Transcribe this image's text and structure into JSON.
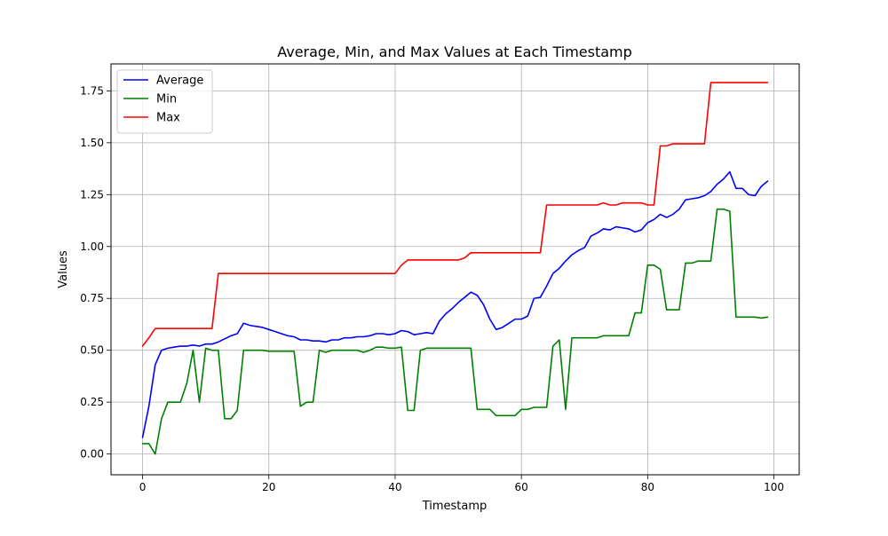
{
  "chart_data": {
    "type": "line",
    "title": "Average, Min, and Max Values at Each Timestamp",
    "xlabel": "Timestamp",
    "ylabel": "Values",
    "xlim": [
      -5,
      104
    ],
    "ylim": [
      -0.1,
      1.88
    ],
    "xticks": [
      0,
      20,
      40,
      60,
      80,
      100
    ],
    "xtick_labels": [
      "0",
      "20",
      "40",
      "60",
      "80",
      "100"
    ],
    "yticks": [
      0.0,
      0.25,
      0.5,
      0.75,
      1.0,
      1.25,
      1.5,
      1.75
    ],
    "ytick_labels": [
      "0.00",
      "0.25",
      "0.50",
      "0.75",
      "1.00",
      "1.25",
      "1.50",
      "1.75"
    ],
    "grid": true,
    "legend_position": "upper-left",
    "series": [
      {
        "name": "Average",
        "color": "#0000ff",
        "points": [
          [
            0,
            0.08
          ],
          [
            1,
            0.23
          ],
          [
            2,
            0.43
          ],
          [
            3,
            0.5
          ],
          [
            4,
            0.51
          ],
          [
            5,
            0.515
          ],
          [
            6,
            0.52
          ],
          [
            7,
            0.52
          ],
          [
            8,
            0.525
          ],
          [
            9,
            0.52
          ],
          [
            10,
            0.53
          ],
          [
            11,
            0.53
          ],
          [
            12,
            0.54
          ],
          [
            13,
            0.555
          ],
          [
            14,
            0.57
          ],
          [
            15,
            0.58
          ],
          [
            16,
            0.63
          ],
          [
            17,
            0.62
          ],
          [
            18,
            0.615
          ],
          [
            19,
            0.61
          ],
          [
            20,
            0.6
          ],
          [
            21,
            0.59
          ],
          [
            22,
            0.58
          ],
          [
            23,
            0.57
          ],
          [
            24,
            0.565
          ],
          [
            25,
            0.55
          ],
          [
            26,
            0.55
          ],
          [
            27,
            0.545
          ],
          [
            28,
            0.545
          ],
          [
            29,
            0.54
          ],
          [
            30,
            0.55
          ],
          [
            31,
            0.55
          ],
          [
            32,
            0.56
          ],
          [
            33,
            0.56
          ],
          [
            34,
            0.565
          ],
          [
            35,
            0.565
          ],
          [
            36,
            0.57
          ],
          [
            37,
            0.58
          ],
          [
            38,
            0.58
          ],
          [
            39,
            0.575
          ],
          [
            40,
            0.58
          ],
          [
            41,
            0.595
          ],
          [
            42,
            0.59
          ],
          [
            43,
            0.575
          ],
          [
            44,
            0.58
          ],
          [
            45,
            0.585
          ],
          [
            46,
            0.58
          ],
          [
            47,
            0.64
          ],
          [
            48,
            0.675
          ],
          [
            49,
            0.7
          ],
          [
            50,
            0.73
          ],
          [
            51,
            0.755
          ],
          [
            52,
            0.78
          ],
          [
            53,
            0.765
          ],
          [
            54,
            0.72
          ],
          [
            55,
            0.65
          ],
          [
            56,
            0.6
          ],
          [
            57,
            0.61
          ],
          [
            58,
            0.63
          ],
          [
            59,
            0.65
          ],
          [
            60,
            0.65
          ],
          [
            61,
            0.665
          ],
          [
            62,
            0.75
          ],
          [
            63,
            0.755
          ],
          [
            64,
            0.81
          ],
          [
            65,
            0.87
          ],
          [
            66,
            0.895
          ],
          [
            67,
            0.93
          ],
          [
            68,
            0.96
          ],
          [
            69,
            0.98
          ],
          [
            70,
            0.995
          ],
          [
            71,
            1.05
          ],
          [
            72,
            1.065
          ],
          [
            73,
            1.085
          ],
          [
            74,
            1.08
          ],
          [
            75,
            1.095
          ],
          [
            76,
            1.09
          ],
          [
            77,
            1.085
          ],
          [
            78,
            1.07
          ],
          [
            79,
            1.08
          ],
          [
            80,
            1.115
          ],
          [
            81,
            1.13
          ],
          [
            82,
            1.155
          ],
          [
            83,
            1.14
          ],
          [
            84,
            1.155
          ],
          [
            85,
            1.18
          ],
          [
            86,
            1.225
          ],
          [
            87,
            1.23
          ],
          [
            88,
            1.235
          ],
          [
            89,
            1.245
          ],
          [
            90,
            1.265
          ],
          [
            91,
            1.3
          ],
          [
            92,
            1.325
          ],
          [
            93,
            1.36
          ],
          [
            94,
            1.28
          ],
          [
            95,
            1.28
          ],
          [
            96,
            1.25
          ],
          [
            97,
            1.245
          ],
          [
            98,
            1.29
          ],
          [
            99,
            1.315
          ]
        ]
      },
      {
        "name": "Min",
        "color": "#008000",
        "points": [
          [
            0,
            0.05
          ],
          [
            1,
            0.05
          ],
          [
            2,
            0.0
          ],
          [
            3,
            0.17
          ],
          [
            4,
            0.25
          ],
          [
            5,
            0.25
          ],
          [
            6,
            0.25
          ],
          [
            7,
            0.34
          ],
          [
            8,
            0.5
          ],
          [
            9,
            0.25
          ],
          [
            10,
            0.51
          ],
          [
            11,
            0.5
          ],
          [
            12,
            0.5
          ],
          [
            13,
            0.17
          ],
          [
            14,
            0.17
          ],
          [
            15,
            0.21
          ],
          [
            16,
            0.5
          ],
          [
            17,
            0.5
          ],
          [
            18,
            0.5
          ],
          [
            19,
            0.5
          ],
          [
            20,
            0.495
          ],
          [
            21,
            0.495
          ],
          [
            22,
            0.495
          ],
          [
            23,
            0.495
          ],
          [
            24,
            0.495
          ],
          [
            25,
            0.23
          ],
          [
            26,
            0.25
          ],
          [
            27,
            0.25
          ],
          [
            28,
            0.5
          ],
          [
            29,
            0.49
          ],
          [
            30,
            0.5
          ],
          [
            31,
            0.5
          ],
          [
            32,
            0.5
          ],
          [
            33,
            0.5
          ],
          [
            34,
            0.5
          ],
          [
            35,
            0.49
          ],
          [
            36,
            0.5
          ],
          [
            37,
            0.515
          ],
          [
            38,
            0.515
          ],
          [
            39,
            0.51
          ],
          [
            40,
            0.51
          ],
          [
            41,
            0.515
          ],
          [
            42,
            0.21
          ],
          [
            43,
            0.21
          ],
          [
            44,
            0.5
          ],
          [
            45,
            0.51
          ],
          [
            46,
            0.51
          ],
          [
            47,
            0.51
          ],
          [
            48,
            0.51
          ],
          [
            49,
            0.51
          ],
          [
            50,
            0.51
          ],
          [
            51,
            0.51
          ],
          [
            52,
            0.51
          ],
          [
            53,
            0.215
          ],
          [
            54,
            0.215
          ],
          [
            55,
            0.215
          ],
          [
            56,
            0.185
          ],
          [
            57,
            0.185
          ],
          [
            58,
            0.185
          ],
          [
            59,
            0.185
          ],
          [
            60,
            0.215
          ],
          [
            61,
            0.215
          ],
          [
            62,
            0.225
          ],
          [
            63,
            0.225
          ],
          [
            64,
            0.225
          ],
          [
            65,
            0.52
          ],
          [
            66,
            0.55
          ],
          [
            67,
            0.215
          ],
          [
            68,
            0.56
          ],
          [
            69,
            0.56
          ],
          [
            70,
            0.56
          ],
          [
            71,
            0.56
          ],
          [
            72,
            0.56
          ],
          [
            73,
            0.57
          ],
          [
            74,
            0.57
          ],
          [
            75,
            0.57
          ],
          [
            76,
            0.57
          ],
          [
            77,
            0.57
          ],
          [
            78,
            0.68
          ],
          [
            79,
            0.68
          ],
          [
            80,
            0.91
          ],
          [
            81,
            0.91
          ],
          [
            82,
            0.89
          ],
          [
            83,
            0.695
          ],
          [
            84,
            0.695
          ],
          [
            85,
            0.695
          ],
          [
            86,
            0.92
          ],
          [
            87,
            0.92
          ],
          [
            88,
            0.93
          ],
          [
            89,
            0.93
          ],
          [
            90,
            0.93
          ],
          [
            91,
            1.18
          ],
          [
            92,
            1.18
          ],
          [
            93,
            1.17
          ],
          [
            94,
            0.66
          ],
          [
            95,
            0.66
          ],
          [
            96,
            0.66
          ],
          [
            97,
            0.66
          ],
          [
            98,
            0.655
          ],
          [
            99,
            0.66
          ]
        ]
      },
      {
        "name": "Max",
        "color": "#ff0000",
        "points": [
          [
            0,
            0.52
          ],
          [
            1,
            0.56
          ],
          [
            2,
            0.605
          ],
          [
            3,
            0.605
          ],
          [
            10,
            0.605
          ],
          [
            11,
            0.605
          ],
          [
            12,
            0.87
          ],
          [
            40,
            0.87
          ],
          [
            41,
            0.91
          ],
          [
            42,
            0.935
          ],
          [
            50,
            0.935
          ],
          [
            51,
            0.945
          ],
          [
            52,
            0.97
          ],
          [
            63,
            0.97
          ],
          [
            64,
            1.2
          ],
          [
            72,
            1.2
          ],
          [
            73,
            1.21
          ],
          [
            74,
            1.2
          ],
          [
            75,
            1.2
          ],
          [
            76,
            1.21
          ],
          [
            79,
            1.21
          ],
          [
            80,
            1.2
          ],
          [
            81,
            1.2
          ],
          [
            82,
            1.485
          ],
          [
            83,
            1.485
          ],
          [
            84,
            1.495
          ],
          [
            89,
            1.495
          ],
          [
            90,
            1.79
          ],
          [
            99,
            1.79
          ]
        ]
      }
    ]
  }
}
